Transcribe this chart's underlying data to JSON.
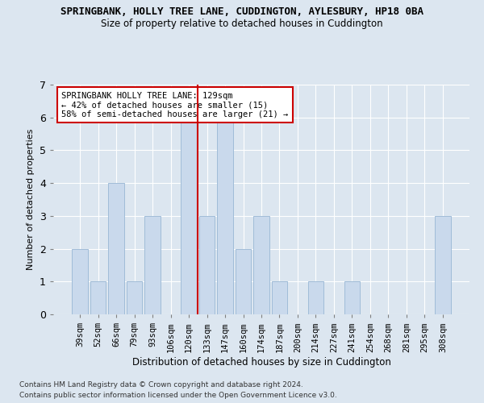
{
  "title": "SPRINGBANK, HOLLY TREE LANE, CUDDINGTON, AYLESBURY, HP18 0BA",
  "subtitle": "Size of property relative to detached houses in Cuddington",
  "xlabel": "Distribution of detached houses by size in Cuddington",
  "ylabel": "Number of detached properties",
  "categories": [
    "39sqm",
    "52sqm",
    "66sqm",
    "79sqm",
    "93sqm",
    "106sqm",
    "120sqm",
    "133sqm",
    "147sqm",
    "160sqm",
    "174sqm",
    "187sqm",
    "200sqm",
    "214sqm",
    "227sqm",
    "241sqm",
    "254sqm",
    "268sqm",
    "281sqm",
    "295sqm",
    "308sqm"
  ],
  "values": [
    2,
    1,
    4,
    1,
    3,
    0,
    6,
    3,
    6,
    2,
    3,
    1,
    0,
    1,
    0,
    1,
    0,
    0,
    0,
    0,
    3
  ],
  "bar_color": "#c9d9ec",
  "bar_edge_color": "#a0bcd8",
  "ref_line_index": 6,
  "ref_line_color": "#cc0000",
  "annotation_title": "SPRINGBANK HOLLY TREE LANE: 129sqm",
  "annotation_line1": "← 42% of detached houses are smaller (15)",
  "annotation_line2": "58% of semi-detached houses are larger (21) →",
  "annotation_box_color": "#ffffff",
  "annotation_box_edge_color": "#cc0000",
  "ylim": [
    0,
    7
  ],
  "yticks": [
    0,
    1,
    2,
    3,
    4,
    5,
    6,
    7
  ],
  "background_color": "#dce6f0",
  "plot_bg_color": "#dce6f0",
  "footer1": "Contains HM Land Registry data © Crown copyright and database right 2024.",
  "footer2": "Contains public sector information licensed under the Open Government Licence v3.0."
}
